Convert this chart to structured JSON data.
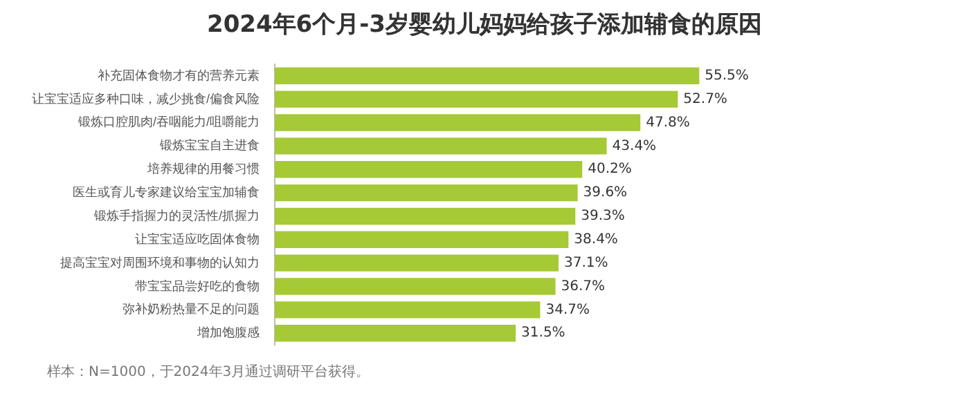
{
  "chart_data": {
    "type": "bar",
    "orientation": "horizontal",
    "title": "2024年6个月-3岁婴幼儿妈妈给孩子添加辅食的原因",
    "categories": [
      "补充固体食物才有的营养元素",
      "让宝宝适应多种口味，减少挑食/偏食风险",
      "锻炼口腔肌肉/吞咽能力/咀嚼能力",
      "锻炼宝宝自主进食",
      "培养规律的用餐习惯",
      "医生或育儿专家建议给宝宝加辅食",
      "锻炼手指握力的灵活性/抓握力",
      "让宝宝适应吃固体食物",
      "提高宝宝对周围环境和事物的认知力",
      "带宝宝品尝好吃的食物",
      "弥补奶粉热量不足的问题",
      "增加饱腹感"
    ],
    "values": [
      55.5,
      52.7,
      47.8,
      43.4,
      40.2,
      39.6,
      39.3,
      38.4,
      37.1,
      36.7,
      34.7,
      31.5
    ],
    "value_labels": [
      "55.5%",
      "52.7%",
      "47.8%",
      "43.4%",
      "40.2%",
      "39.6%",
      "39.3%",
      "38.4%",
      "37.1%",
      "36.7%",
      "34.7%",
      "31.5%"
    ],
    "color": "#a6c936",
    "annotations": [
      "样本：N=1000，于2024年3月通过调研平台获得。"
    ]
  }
}
